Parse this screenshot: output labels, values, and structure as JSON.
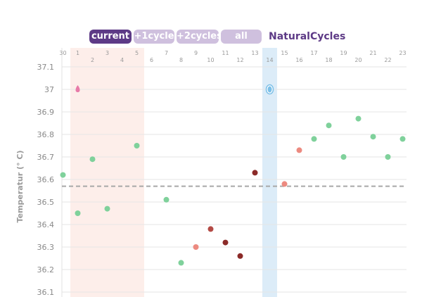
{
  "tabs": {
    "current": "current",
    "plus1": "+1cycle",
    "plus2": "+2cycles",
    "all": "all"
  },
  "brand": "NaturalCycles",
  "chart_data": {
    "type": "scatter",
    "title": "",
    "xlabel": "",
    "ylabel": "Temperatur (° C)",
    "ylim": [
      36.1,
      37.1
    ],
    "yticks": [
      "36.1",
      "36.2",
      "36.3",
      "36.4",
      "36.5",
      "36.6",
      "36.7",
      "36.8",
      "36.9",
      "37",
      "37.1"
    ],
    "day_labels_top": [
      "30",
      "1",
      "3",
      "5",
      "7",
      "9",
      "11",
      "13",
      "15",
      "17",
      "19",
      "21",
      "23"
    ],
    "day_labels_bottom": [
      "2",
      "4",
      "6",
      "8",
      "10",
      "12",
      "14",
      "16",
      "18",
      "20",
      "22"
    ],
    "days": [
      30,
      1,
      2,
      3,
      4,
      5,
      6,
      7,
      8,
      9,
      10,
      11,
      12,
      13,
      14,
      15,
      16,
      17,
      18,
      19,
      20,
      21,
      22,
      23
    ],
    "grid": true,
    "cover_line": 36.57,
    "period_days": [
      1,
      2,
      3,
      4,
      5
    ],
    "ovulation_day": 14,
    "markers": [
      {
        "day": 1,
        "type": "period-drop",
        "color": "#e87aa8"
      },
      {
        "day": 14,
        "type": "ovulation-egg",
        "color": "#7cc0e8"
      }
    ],
    "colors": {
      "green": "#7fd19b",
      "salmon": "#ec8a80",
      "red": "#b34a45",
      "dark_red": "#8b2a28",
      "cover_line": "#a8a8a8",
      "period_band": "#fdeeea",
      "ovulation_band": "#dcecf8"
    },
    "series": [
      {
        "day": 30,
        "value": 36.62,
        "color": "green"
      },
      {
        "day": 1,
        "value": 36.45,
        "color": "green"
      },
      {
        "day": 2,
        "value": 36.69,
        "color": "green"
      },
      {
        "day": 3,
        "value": 36.47,
        "color": "green"
      },
      {
        "day": 5,
        "value": 36.75,
        "color": "green"
      },
      {
        "day": 7,
        "value": 36.51,
        "color": "green"
      },
      {
        "day": 8,
        "value": 36.23,
        "color": "green"
      },
      {
        "day": 9,
        "value": 36.3,
        "color": "salmon"
      },
      {
        "day": 10,
        "value": 36.38,
        "color": "red"
      },
      {
        "day": 11,
        "value": 36.32,
        "color": "dark_red"
      },
      {
        "day": 12,
        "value": 36.26,
        "color": "dark_red"
      },
      {
        "day": 13,
        "value": 36.63,
        "color": "dark_red"
      },
      {
        "day": 15,
        "value": 36.58,
        "color": "salmon"
      },
      {
        "day": 16,
        "value": 36.73,
        "color": "salmon"
      },
      {
        "day": 17,
        "value": 36.78,
        "color": "green"
      },
      {
        "day": 18,
        "value": 36.84,
        "color": "green"
      },
      {
        "day": 19,
        "value": 36.7,
        "color": "green"
      },
      {
        "day": 20,
        "value": 36.87,
        "color": "green"
      },
      {
        "day": 21,
        "value": 36.79,
        "color": "green"
      },
      {
        "day": 22,
        "value": 36.7,
        "color": "green"
      },
      {
        "day": 23,
        "value": 36.78,
        "color": "green"
      }
    ]
  }
}
